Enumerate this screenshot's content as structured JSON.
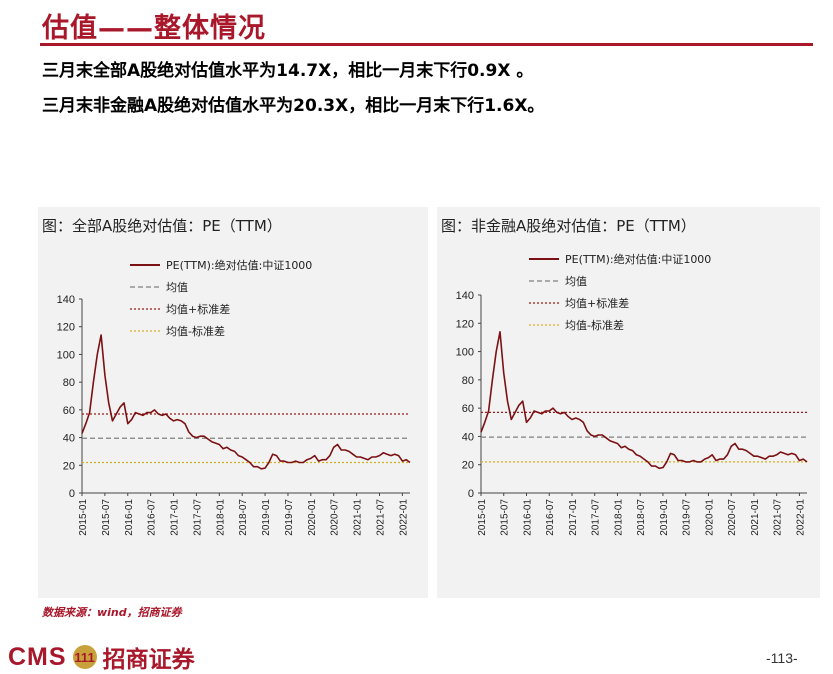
{
  "page": {
    "title": "估值——整体情况",
    "line1": "三月末全部A股绝对估值水平为14.7X，相比一月末下行0.9X 。",
    "line2": "三月末非金融A股绝对估值水平为20.3X，相比一月末下行1.6X。",
    "source": "数据来源：wind，招商证券",
    "footer_brand_en": "CMS",
    "footer_logo_glyph": "111",
    "footer_brand_cn": "招商证券",
    "page_number": "-113-"
  },
  "colors": {
    "brand": "#a8172a",
    "series": "#7b1113",
    "mean": "#808080",
    "plus_std": "#a01818",
    "minus_std": "#d4b020"
  },
  "chart_data": [
    {
      "panel_title": "图：全部A股绝对估值：PE（TTM）",
      "type": "line",
      "legend_placement": "top",
      "series": [
        {
          "name": "PE(TTM):绝对估值:中证1000",
          "style": "solid",
          "points": [
            [
              "2015-01",
              43
            ],
            [
              "2015-02",
              50
            ],
            [
              "2015-03",
              58
            ],
            [
              "2015-04",
              80
            ],
            [
              "2015-05",
              100
            ],
            [
              "2015-06",
              114
            ],
            [
              "2015-07",
              85
            ],
            [
              "2015-08",
              65
            ],
            [
              "2015-09",
              52
            ],
            [
              "2015-10",
              57
            ],
            [
              "2015-11",
              62
            ],
            [
              "2015-12",
              65
            ],
            [
              "2016-01",
              50
            ],
            [
              "2016-02",
              53
            ],
            [
              "2016-03",
              58
            ],
            [
              "2016-04",
              57
            ],
            [
              "2016-05",
              56
            ],
            [
              "2016-06",
              58
            ],
            [
              "2016-07",
              58
            ],
            [
              "2016-08",
              60
            ],
            [
              "2016-09",
              57
            ],
            [
              "2016-10",
              56
            ],
            [
              "2016-11",
              57
            ],
            [
              "2016-12",
              54
            ],
            [
              "2017-01",
              52
            ],
            [
              "2017-02",
              53
            ],
            [
              "2017-03",
              52
            ],
            [
              "2017-04",
              50
            ],
            [
              "2017-05",
              44
            ],
            [
              "2017-06",
              41
            ],
            [
              "2017-07",
              40
            ],
            [
              "2017-08",
              41
            ],
            [
              "2017-09",
              41
            ],
            [
              "2017-10",
              39
            ],
            [
              "2017-11",
              37
            ],
            [
              "2017-12",
              36
            ],
            [
              "2018-01",
              35
            ],
            [
              "2018-02",
              32
            ],
            [
              "2018-03",
              33
            ],
            [
              "2018-04",
              31
            ],
            [
              "2018-05",
              30
            ],
            [
              "2018-06",
              27
            ],
            [
              "2018-07",
              26
            ],
            [
              "2018-08",
              24
            ],
            [
              "2018-09",
              22
            ],
            [
              "2018-10",
              19
            ],
            [
              "2018-11",
              19
            ],
            [
              "2018-12",
              17.5
            ],
            [
              "2019-01",
              18
            ],
            [
              "2019-02",
              22
            ],
            [
              "2019-03",
              28
            ],
            [
              "2019-04",
              27
            ],
            [
              "2019-05",
              23
            ],
            [
              "2019-06",
              23
            ],
            [
              "2019-07",
              22
            ],
            [
              "2019-08",
              22
            ],
            [
              "2019-09",
              23
            ],
            [
              "2019-10",
              22
            ],
            [
              "2019-11",
              22
            ],
            [
              "2019-12",
              24
            ],
            [
              "2020-01",
              25
            ],
            [
              "2020-02",
              27
            ],
            [
              "2020-03",
              23
            ],
            [
              "2020-04",
              24
            ],
            [
              "2020-05",
              24
            ],
            [
              "2020-06",
              27
            ],
            [
              "2020-07",
              33
            ],
            [
              "2020-08",
              35
            ],
            [
              "2020-09",
              31
            ],
            [
              "2020-10",
              31
            ],
            [
              "2020-11",
              30
            ],
            [
              "2020-12",
              28
            ],
            [
              "2021-01",
              26
            ],
            [
              "2021-02",
              26
            ],
            [
              "2021-03",
              25
            ],
            [
              "2021-04",
              24
            ],
            [
              "2021-05",
              26
            ],
            [
              "2021-06",
              26
            ],
            [
              "2021-07",
              27
            ],
            [
              "2021-08",
              29
            ],
            [
              "2021-09",
              28
            ],
            [
              "2021-10",
              27
            ],
            [
              "2021-11",
              28
            ],
            [
              "2021-12",
              27
            ],
            [
              "2022-01",
              23
            ],
            [
              "2022-02",
              24
            ],
            [
              "2022-03",
              22
            ]
          ]
        },
        {
          "name": "均值",
          "style": "dashed",
          "value": 39.5
        },
        {
          "name": "均值+标准差",
          "style": "dotted",
          "value": 57
        },
        {
          "name": "均值-标准差",
          "style": "dotted",
          "value": 22
        }
      ],
      "ylim": [
        0,
        140
      ],
      "yticks": [
        0,
        20,
        40,
        60,
        80,
        100,
        120,
        140
      ],
      "xticks": [
        "2015-01",
        "2015-07",
        "2016-01",
        "2016-07",
        "2017-01",
        "2017-07",
        "2018-01",
        "2018-07",
        "2019-01",
        "2019-07",
        "2020-01",
        "2020-07",
        "2021-01",
        "2021-07",
        "2022-01"
      ]
    },
    {
      "panel_title": "图：非金融A股绝对估值：PE（TTM）",
      "type": "line",
      "legend_placement": "top",
      "series": [
        {
          "name": "PE(TTM):绝对估值:中证1000",
          "style": "solid",
          "points": [
            [
              "2015-01",
              43
            ],
            [
              "2015-02",
              50
            ],
            [
              "2015-03",
              58
            ],
            [
              "2015-04",
              80
            ],
            [
              "2015-05",
              100
            ],
            [
              "2015-06",
              114
            ],
            [
              "2015-07",
              85
            ],
            [
              "2015-08",
              65
            ],
            [
              "2015-09",
              52
            ],
            [
              "2015-10",
              57
            ],
            [
              "2015-11",
              62
            ],
            [
              "2015-12",
              65
            ],
            [
              "2016-01",
              50
            ],
            [
              "2016-02",
              53
            ],
            [
              "2016-03",
              58
            ],
            [
              "2016-04",
              57
            ],
            [
              "2016-05",
              56
            ],
            [
              "2016-06",
              58
            ],
            [
              "2016-07",
              58
            ],
            [
              "2016-08",
              60
            ],
            [
              "2016-09",
              57
            ],
            [
              "2016-10",
              56
            ],
            [
              "2016-11",
              57
            ],
            [
              "2016-12",
              54
            ],
            [
              "2017-01",
              52
            ],
            [
              "2017-02",
              53
            ],
            [
              "2017-03",
              52
            ],
            [
              "2017-04",
              50
            ],
            [
              "2017-05",
              44
            ],
            [
              "2017-06",
              41
            ],
            [
              "2017-07",
              40
            ],
            [
              "2017-08",
              41
            ],
            [
              "2017-09",
              41
            ],
            [
              "2017-10",
              39
            ],
            [
              "2017-11",
              37
            ],
            [
              "2017-12",
              36
            ],
            [
              "2018-01",
              35
            ],
            [
              "2018-02",
              32
            ],
            [
              "2018-03",
              33
            ],
            [
              "2018-04",
              31
            ],
            [
              "2018-05",
              30
            ],
            [
              "2018-06",
              27
            ],
            [
              "2018-07",
              26
            ],
            [
              "2018-08",
              24
            ],
            [
              "2018-09",
              22
            ],
            [
              "2018-10",
              19
            ],
            [
              "2018-11",
              19
            ],
            [
              "2018-12",
              17.5
            ],
            [
              "2019-01",
              18
            ],
            [
              "2019-02",
              22
            ],
            [
              "2019-03",
              28
            ],
            [
              "2019-04",
              27
            ],
            [
              "2019-05",
              23
            ],
            [
              "2019-06",
              23
            ],
            [
              "2019-07",
              22
            ],
            [
              "2019-08",
              22
            ],
            [
              "2019-09",
              23
            ],
            [
              "2019-10",
              22
            ],
            [
              "2019-11",
              22
            ],
            [
              "2019-12",
              24
            ],
            [
              "2020-01",
              25
            ],
            [
              "2020-02",
              27
            ],
            [
              "2020-03",
              23
            ],
            [
              "2020-04",
              24
            ],
            [
              "2020-05",
              24
            ],
            [
              "2020-06",
              27
            ],
            [
              "2020-07",
              33
            ],
            [
              "2020-08",
              35
            ],
            [
              "2020-09",
              31
            ],
            [
              "2020-10",
              31
            ],
            [
              "2020-11",
              30
            ],
            [
              "2020-12",
              28
            ],
            [
              "2021-01",
              26
            ],
            [
              "2021-02",
              26
            ],
            [
              "2021-03",
              25
            ],
            [
              "2021-04",
              24
            ],
            [
              "2021-05",
              26
            ],
            [
              "2021-06",
              26
            ],
            [
              "2021-07",
              27
            ],
            [
              "2021-08",
              29
            ],
            [
              "2021-09",
              28
            ],
            [
              "2021-10",
              27
            ],
            [
              "2021-11",
              28
            ],
            [
              "2021-12",
              27
            ],
            [
              "2022-01",
              23
            ],
            [
              "2022-02",
              24
            ],
            [
              "2022-03",
              22
            ]
          ]
        },
        {
          "name": "均值",
          "style": "dashed",
          "value": 39.5
        },
        {
          "name": "均值+标准差",
          "style": "dotted",
          "value": 57
        },
        {
          "name": "均值-标准差",
          "style": "dotted",
          "value": 22
        }
      ],
      "ylim": [
        0,
        140
      ],
      "yticks": [
        0,
        20,
        40,
        60,
        80,
        100,
        120,
        140
      ],
      "xticks": [
        "2015-01",
        "2015-07",
        "2016-01",
        "2016-07",
        "2017-01",
        "2017-07",
        "2018-01",
        "2018-07",
        "2019-01",
        "2019-07",
        "2020-01",
        "2020-07",
        "2021-01",
        "2021-07",
        "2022-01"
      ]
    }
  ]
}
